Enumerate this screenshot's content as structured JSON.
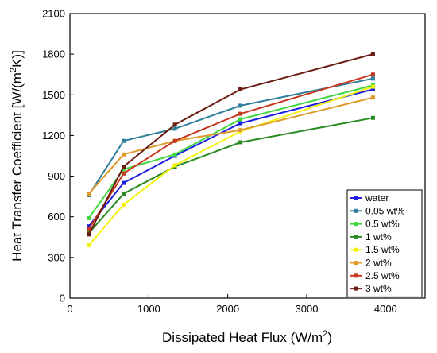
{
  "chart_data": {
    "type": "line",
    "title": "",
    "xlabel": "Dissipated Heat Flux",
    "xlabel_unit_base": "(W/m",
    "xlabel_unit_sup": "2",
    "xlabel_unit_end": ")",
    "ylabel": "Heat Transfer Coefficient",
    "ylabel_unit_base": "[W/(m",
    "ylabel_unit_sup": "2",
    "ylabel_unit_end": "K)]",
    "xlim": [
      0,
      4500
    ],
    "ylim": [
      0,
      2100
    ],
    "xticks": [
      0,
      1000,
      2000,
      3000,
      4000
    ],
    "yticks": [
      0,
      300,
      600,
      900,
      1200,
      1500,
      1800,
      2100
    ],
    "grid": false,
    "legend_position": "bottom-right",
    "series": [
      {
        "name": "water",
        "color": "#1f1fe0",
        "x": [
          240,
          680,
          1330,
          2160,
          3840
        ],
        "y": [
          530,
          850,
          1050,
          1290,
          1540
        ]
      },
      {
        "name": "0.05 wt%",
        "color": "#2d7f9c",
        "x": [
          240,
          680,
          1330,
          2160,
          3840
        ],
        "y": [
          760,
          1160,
          1250,
          1420,
          1620
        ]
      },
      {
        "name": "0.5 wt%",
        "color": "#3ed93e",
        "x": [
          240,
          680,
          1330,
          2160,
          3840
        ],
        "y": [
          590,
          950,
          1060,
          1320,
          1570
        ]
      },
      {
        "name": "1 wt%",
        "color": "#2a8a22",
        "x": [
          240,
          680,
          1330,
          2160,
          3840
        ],
        "y": [
          480,
          770,
          970,
          1150,
          1330
        ]
      },
      {
        "name": "1.5 wt%",
        "color": "#f2f20e",
        "x": [
          240,
          680,
          1330,
          2160,
          3840
        ],
        "y": [
          390,
          690,
          980,
          1230,
          1560
        ]
      },
      {
        "name": "2 wt%",
        "color": "#e09a2a",
        "x": [
          240,
          680,
          1330,
          2160,
          3840
        ],
        "y": [
          770,
          1060,
          1160,
          1240,
          1480
        ]
      },
      {
        "name": "2.5 wt%",
        "color": "#c8361e",
        "x": [
          240,
          680,
          1330,
          2160,
          3840
        ],
        "y": [
          510,
          920,
          1160,
          1360,
          1650
        ]
      },
      {
        "name": "3 wt%",
        "color": "#6b1c12",
        "x": [
          240,
          680,
          1330,
          2160,
          3840
        ],
        "y": [
          470,
          970,
          1280,
          1540,
          1800
        ]
      }
    ]
  }
}
